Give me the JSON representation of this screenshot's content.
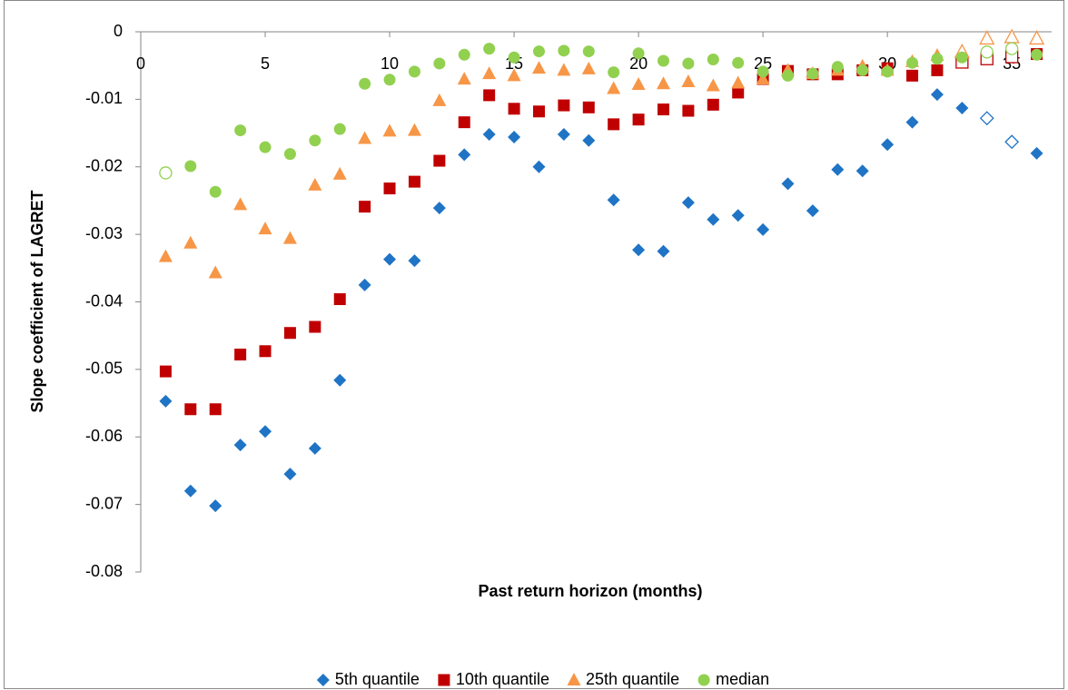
{
  "chart_data": {
    "type": "scatter",
    "xlabel": "Past return  horizon (months)",
    "ylabel": "Slope coefficient of LAGRET",
    "x": [
      1,
      2,
      3,
      4,
      5,
      6,
      7,
      8,
      9,
      10,
      11,
      12,
      13,
      14,
      15,
      16,
      17,
      18,
      19,
      20,
      21,
      22,
      23,
      24,
      25,
      26,
      27,
      28,
      29,
      30,
      31,
      32,
      33,
      34,
      35,
      36
    ],
    "xlim": [
      0,
      36.6
    ],
    "xticks": [
      0,
      5,
      10,
      15,
      20,
      25,
      30,
      35
    ],
    "ylim": [
      -0.08,
      0
    ],
    "yticks": [
      0,
      -0.01,
      -0.02,
      -0.03,
      -0.04,
      -0.05,
      -0.06,
      -0.07,
      -0.08
    ],
    "series": [
      {
        "name": "5th quantile",
        "color": "#1f74c5",
        "marker": "diamond",
        "values": [
          -0.0547,
          -0.068,
          -0.0702,
          -0.0612,
          -0.0592,
          -0.0655,
          -0.0617,
          -0.0516,
          -0.0375,
          -0.0337,
          -0.0339,
          -0.0261,
          -0.0182,
          -0.0152,
          -0.0156,
          -0.02,
          -0.0152,
          -0.0161,
          -0.0249,
          -0.0323,
          -0.0325,
          -0.0253,
          -0.0278,
          -0.0272,
          -0.0293,
          -0.0225,
          -0.0265,
          -0.0204,
          -0.0206,
          -0.0167,
          -0.0134,
          -0.0093,
          -0.0113,
          -0.0128,
          -0.0163,
          -0.018
        ],
        "hollow": [
          33,
          34
        ]
      },
      {
        "name": "10th quantile",
        "color": "#c00000",
        "marker": "square",
        "values": [
          -0.0503,
          -0.0559,
          -0.0559,
          -0.0478,
          -0.0473,
          -0.0446,
          -0.0437,
          -0.0396,
          -0.0259,
          -0.0232,
          -0.0222,
          -0.0191,
          -0.0134,
          -0.0094,
          -0.0114,
          -0.0118,
          -0.0109,
          -0.0112,
          -0.0137,
          -0.013,
          -0.0115,
          -0.0117,
          -0.0108,
          -0.009,
          -0.007,
          -0.0058,
          -0.0063,
          -0.0063,
          -0.0057,
          -0.0054,
          -0.0065,
          -0.0057,
          -0.0045,
          -0.004,
          -0.0037,
          -0.0033
        ],
        "hollow": [
          32,
          33,
          34
        ]
      },
      {
        "name": "25th quantile",
        "color": "#f79646",
        "marker": "triangle",
        "values": [
          -0.0333,
          -0.0313,
          -0.0357,
          -0.0256,
          -0.0292,
          -0.0306,
          -0.0227,
          -0.0211,
          -0.0158,
          -0.0147,
          -0.0146,
          -0.0102,
          -0.007,
          -0.0062,
          -0.0065,
          -0.0054,
          -0.0057,
          -0.0055,
          -0.0084,
          -0.0078,
          -0.0077,
          -0.0074,
          -0.008,
          -0.0076,
          -0.007,
          -0.0057,
          -0.0062,
          -0.0057,
          -0.0051,
          -0.0057,
          -0.0044,
          -0.0035,
          -0.003,
          -0.001,
          -0.0008,
          -0.001
        ],
        "hollow": [
          32,
          33,
          34,
          35
        ]
      },
      {
        "name": "median",
        "color": "#92d050",
        "marker": "circle",
        "values": [
          -0.0209,
          -0.0199,
          -0.0237,
          -0.0146,
          -0.0171,
          -0.0181,
          -0.0161,
          -0.0144,
          -0.0077,
          -0.0071,
          -0.0059,
          -0.0047,
          -0.0034,
          -0.0025,
          -0.0038,
          -0.0029,
          -0.0028,
          -0.0029,
          -0.006,
          -0.0032,
          -0.0043,
          -0.0047,
          -0.0041,
          -0.0046,
          -0.0059,
          -0.0065,
          -0.0062,
          -0.0052,
          -0.0057,
          -0.0059,
          -0.0046,
          -0.004,
          -0.0038,
          -0.003,
          -0.0025,
          -0.0034
        ],
        "hollow": [
          0,
          33,
          34
        ]
      }
    ]
  }
}
